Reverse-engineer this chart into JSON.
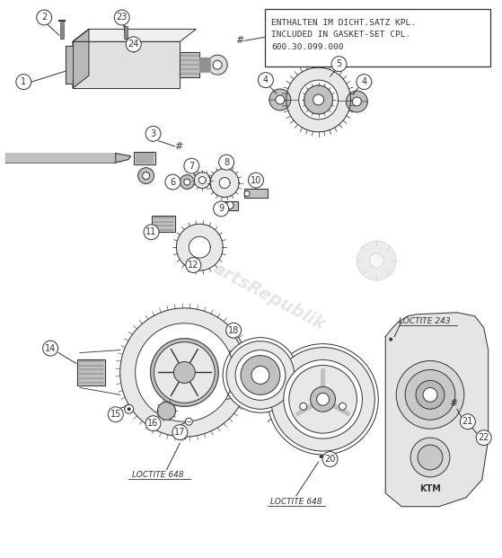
{
  "background_color": "#ffffff",
  "figure_width": 5.59,
  "figure_height": 6.21,
  "box_text_line1": "ENTHALTEN IM DICHT.SATZ KPL.",
  "box_text_line2": "INCLUDED IN GASKET-SET CPL.",
  "box_text_line3": "600.30.099.000",
  "loctite_648_1": "LOCTITE 648",
  "loctite_648_2": "LOCTITE 648",
  "loctite_243": "LOCTITE 243",
  "hash_symbol": "#",
  "watermark": "artsRepublik",
  "line_color": "#333333",
  "gear_fill": "#e8e8e8",
  "gear_dark": "#c0c0c0",
  "motor_fill": "#e0e0e0",
  "motor_dark": "#b8b8b8"
}
